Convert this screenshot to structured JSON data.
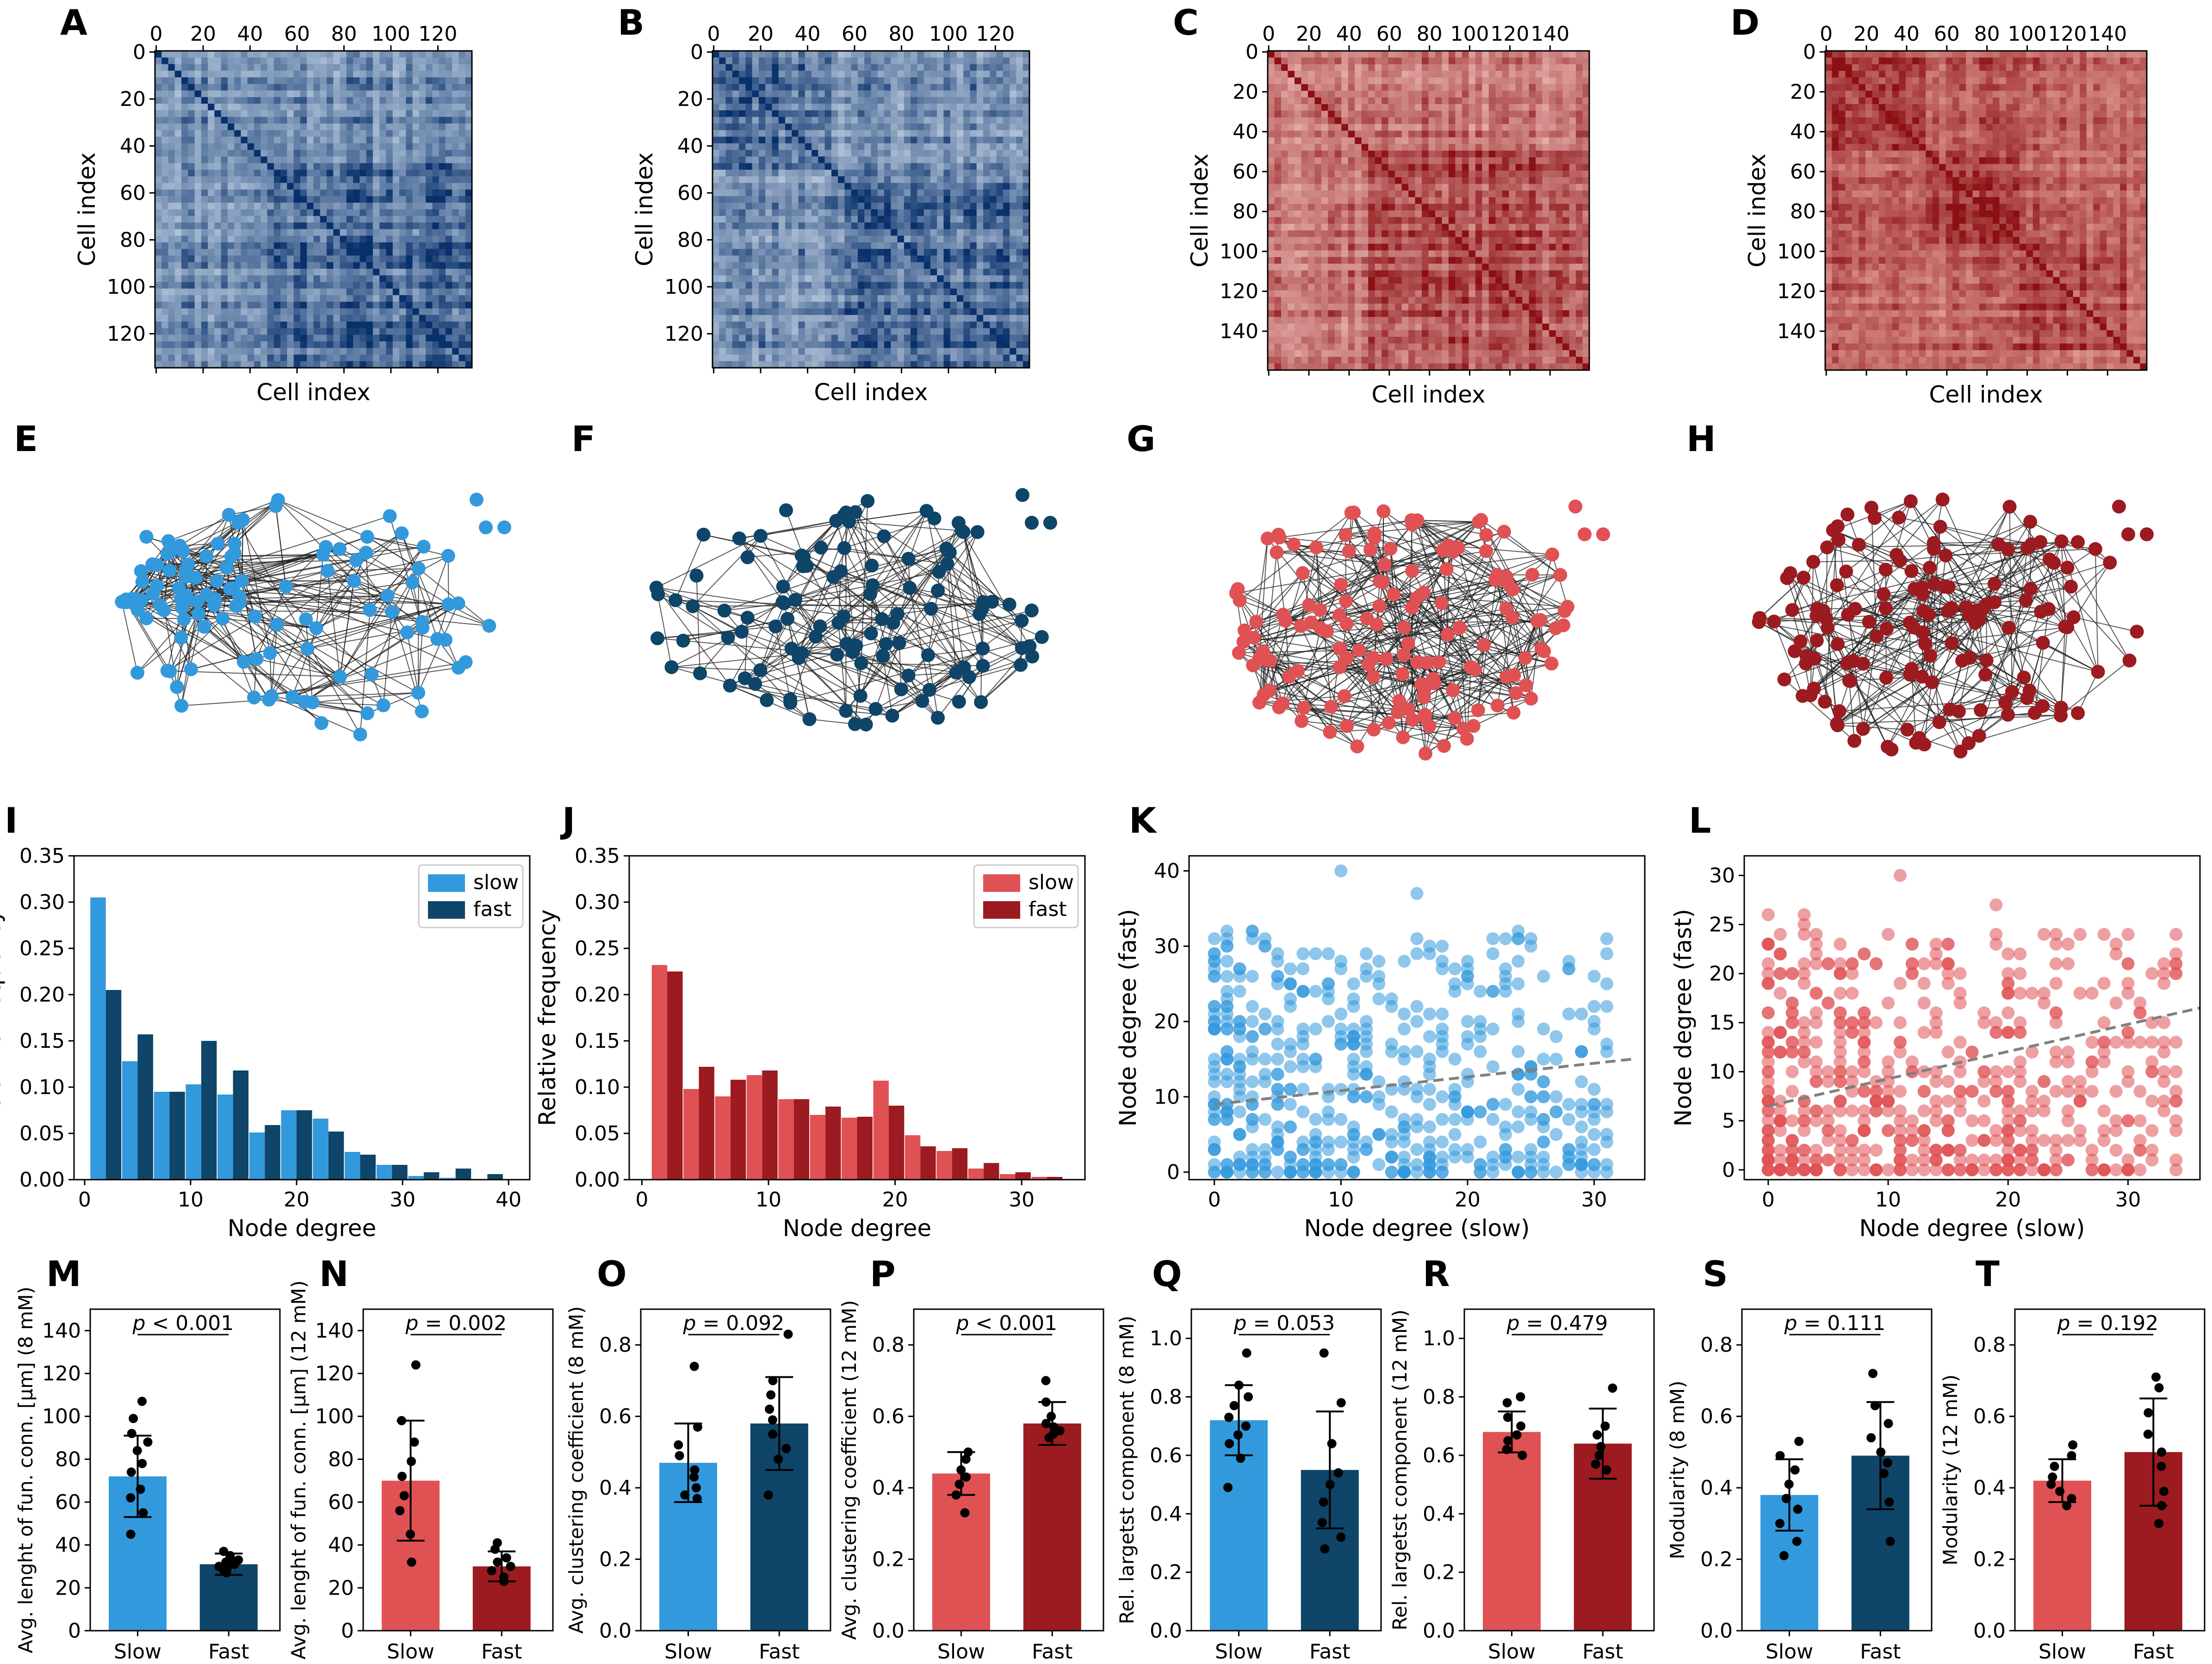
{
  "colors": {
    "slow_8mM": "#3399dd",
    "fast_8mM": "#0e4568",
    "slow_12mM": "#e05154",
    "fast_12mM": "#9b1b20",
    "trend_line": "#808080"
  },
  "chart_data": [
    {
      "id": "A",
      "type": "heatmap",
      "title": "",
      "xlabel": "Cell index",
      "ylabel": "Cell index",
      "n_cells": 135,
      "x_ticks": [
        "0",
        "20",
        "40",
        "60",
        "80",
        "100",
        "120"
      ],
      "y_ticks": [
        "0",
        "20",
        "40",
        "60",
        "80",
        "100",
        "120"
      ],
      "cmap": "Blues"
    },
    {
      "id": "B",
      "type": "heatmap",
      "title": "",
      "xlabel": "Cell index",
      "ylabel": "Cell index",
      "n_cells": 135,
      "x_ticks": [
        "0",
        "20",
        "40",
        "60",
        "80",
        "100",
        "120"
      ],
      "y_ticks": [
        "0",
        "20",
        "40",
        "60",
        "80",
        "100",
        "120"
      ],
      "cmap": "Blues"
    },
    {
      "id": "C",
      "type": "heatmap",
      "title": "",
      "xlabel": "Cell index",
      "ylabel": "Cell index",
      "n_cells": 160,
      "x_ticks": [
        "0",
        "20",
        "40",
        "60",
        "80",
        "100",
        "120",
        "140"
      ],
      "y_ticks": [
        "0",
        "20",
        "40",
        "60",
        "80",
        "100",
        "120",
        "140"
      ],
      "cmap": "Reds"
    },
    {
      "id": "D",
      "type": "heatmap",
      "title": "",
      "xlabel": "Cell index",
      "ylabel": "Cell index",
      "n_cells": 160,
      "x_ticks": [
        "0",
        "20",
        "40",
        "60",
        "80",
        "100",
        "120",
        "140"
      ],
      "y_ticks": [
        "0",
        "20",
        "40",
        "60",
        "80",
        "100",
        "120",
        "140"
      ],
      "cmap": "Reds"
    },
    {
      "id": "E",
      "type": "network",
      "condition": "slow 8 mM",
      "nodes": 135
    },
    {
      "id": "F",
      "type": "network",
      "condition": "fast 8 mM",
      "nodes": 135
    },
    {
      "id": "G",
      "type": "network",
      "condition": "slow 12 mM",
      "nodes": 160
    },
    {
      "id": "H",
      "type": "network",
      "condition": "fast 12 mM",
      "nodes": 160
    },
    {
      "id": "I",
      "type": "bar",
      "xlabel": "Node degree",
      "ylabel": "Relative frequency",
      "ylim": [
        0,
        0.35
      ],
      "xlim": [
        -1,
        42
      ],
      "x_ticks": [
        "0",
        "10",
        "20",
        "30",
        "40"
      ],
      "y_ticks": [
        "0.00",
        "0.05",
        "0.10",
        "0.15",
        "0.20",
        "0.25",
        "0.30",
        "0.35"
      ],
      "legend": "top-right",
      "series": [
        {
          "name": "slow",
          "x": [
            2,
            5,
            8,
            11,
            14,
            17,
            20,
            23,
            26,
            29,
            32,
            35,
            38
          ],
          "values": [
            0.305,
            0.128,
            0.095,
            0.103,
            0.092,
            0.051,
            0.075,
            0.066,
            0.03,
            0.016,
            0.004,
            0.002,
            0.0
          ]
        },
        {
          "name": "fast",
          "x": [
            2,
            5,
            8,
            11,
            14,
            17,
            20,
            23,
            26,
            29,
            32,
            35,
            38
          ],
          "values": [
            0.205,
            0.157,
            0.095,
            0.15,
            0.118,
            0.059,
            0.075,
            0.052,
            0.027,
            0.016,
            0.008,
            0.012,
            0.006
          ]
        }
      ]
    },
    {
      "id": "J",
      "type": "bar",
      "xlabel": "Node degree",
      "ylabel": "Relative frequency",
      "ylim": [
        0,
        0.35
      ],
      "xlim": [
        -1,
        35
      ],
      "x_ticks": [
        "0",
        "10",
        "20",
        "30"
      ],
      "y_ticks": [
        "0.00",
        "0.05",
        "0.10",
        "0.15",
        "0.20",
        "0.25",
        "0.30",
        "0.35"
      ],
      "legend": "top-right",
      "series": [
        {
          "name": "slow",
          "x": [
            2,
            4.5,
            7,
            9.5,
            12,
            14.5,
            17,
            19.5,
            22,
            24.5,
            27,
            29.5,
            32
          ],
          "values": [
            0.232,
            0.098,
            0.09,
            0.113,
            0.087,
            0.07,
            0.067,
            0.107,
            0.048,
            0.031,
            0.012,
            0.006,
            0.003
          ]
        },
        {
          "name": "fast",
          "x": [
            2,
            4.5,
            7,
            9.5,
            12,
            14.5,
            17,
            19.5,
            22,
            24.5,
            27,
            29.5,
            32
          ],
          "values": [
            0.225,
            0.122,
            0.108,
            0.118,
            0.087,
            0.079,
            0.068,
            0.08,
            0.036,
            0.034,
            0.018,
            0.008,
            0.003
          ]
        }
      ]
    },
    {
      "id": "K",
      "type": "scatter",
      "xlabel": "Node degree (slow)",
      "ylabel": "Node degree (fast)",
      "xlim": [
        -2,
        34
      ],
      "ylim": [
        -1,
        42
      ],
      "x_ticks": [
        "0",
        "10",
        "20",
        "30"
      ],
      "y_ticks": [
        "0",
        "10",
        "20",
        "30",
        "40"
      ],
      "n_points": 560,
      "x_max": 32,
      "y_max": 41,
      "trend": {
        "x0": 0,
        "y0": 9,
        "x1": 33,
        "y1": 15
      }
    },
    {
      "id": "L",
      "type": "scatter",
      "xlabel": "Node degree (slow)",
      "ylabel": "Node degree (fast)",
      "xlim": [
        -2,
        36
      ],
      "ylim": [
        -1,
        32
      ],
      "x_ticks": [
        "0",
        "10",
        "20",
        "30"
      ],
      "y_ticks": [
        "0",
        "5",
        "10",
        "15",
        "20",
        "25",
        "30"
      ],
      "n_points": 620,
      "x_max": 35,
      "y_max": 31,
      "trend": {
        "x0": 0,
        "y0": 6.5,
        "x1": 36,
        "y1": 16.5
      }
    },
    {
      "id": "M",
      "type": "bar",
      "ylabel": "Avg. lenght of fun. conn. [μm] (8 mM)",
      "ylim": [
        0,
        150
      ],
      "y_ticks": [
        "0",
        "20",
        "40",
        "60",
        "80",
        "100",
        "120",
        "140"
      ],
      "categories": [
        "Slow",
        "Fast"
      ],
      "values": [
        72,
        31
      ],
      "errors": [
        19,
        5
      ],
      "p_value": "< 0.001",
      "points": [
        [
          107,
          99,
          92,
          88,
          84,
          78,
          74,
          66,
          62,
          55,
          45
        ],
        [
          37,
          35,
          34,
          33,
          32,
          31,
          30,
          29,
          28,
          27
        ]
      ]
    },
    {
      "id": "N",
      "type": "bar",
      "ylabel": "Avg. lenght of fun. conn. [μm] (12 mM)",
      "ylim": [
        0,
        150
      ],
      "y_ticks": [
        "0",
        "20",
        "40",
        "60",
        "80",
        "100",
        "120",
        "140"
      ],
      "categories": [
        "Slow",
        "Fast"
      ],
      "values": [
        70,
        30
      ],
      "errors": [
        28,
        7
      ],
      "p_value": "= 0.002",
      "points": [
        [
          124,
          98,
          88,
          79,
          72,
          63,
          56,
          45,
          32
        ],
        [
          41,
          38,
          34,
          32,
          30,
          28,
          25,
          23
        ]
      ]
    },
    {
      "id": "O",
      "type": "bar",
      "ylabel": "Avg. clustering coefficient (8 mM)",
      "ylim": [
        0,
        0.9
      ],
      "y_ticks": [
        "0.0",
        "0.2",
        "0.4",
        "0.6",
        "0.8"
      ],
      "categories": [
        "Slow",
        "Fast"
      ],
      "values": [
        0.47,
        0.58
      ],
      "errors": [
        0.11,
        0.13
      ],
      "p_value": "= 0.092",
      "points": [
        [
          0.74,
          0.57,
          0.52,
          0.49,
          0.45,
          0.43,
          0.4,
          0.38,
          0.37
        ],
        [
          0.83,
          0.7,
          0.66,
          0.62,
          0.59,
          0.55,
          0.51,
          0.48,
          0.38
        ]
      ]
    },
    {
      "id": "P",
      "type": "bar",
      "ylabel": "Avg. clustering coefficient (12 mM)",
      "ylim": [
        0,
        0.9
      ],
      "y_ticks": [
        "0.0",
        "0.2",
        "0.4",
        "0.6",
        "0.8"
      ],
      "categories": [
        "Slow",
        "Fast"
      ],
      "values": [
        0.44,
        0.58
      ],
      "errors": [
        0.06,
        0.06
      ],
      "p_value": "< 0.001",
      "points": [
        [
          0.5,
          0.48,
          0.45,
          0.43,
          0.41,
          0.38,
          0.33
        ],
        [
          0.7,
          0.64,
          0.6,
          0.58,
          0.57,
          0.56,
          0.55,
          0.54
        ]
      ]
    },
    {
      "id": "Q",
      "type": "bar",
      "ylabel": "Rel. largetst component (8 mM)",
      "ylim": [
        0,
        1.1
      ],
      "y_ticks": [
        "0.0",
        "0.2",
        "0.4",
        "0.6",
        "0.8",
        "1.0"
      ],
      "categories": [
        "Slow",
        "Fast"
      ],
      "values": [
        0.72,
        0.55
      ],
      "errors": [
        0.12,
        0.2
      ],
      "p_value": "= 0.053",
      "points": [
        [
          0.95,
          0.84,
          0.8,
          0.77,
          0.73,
          0.7,
          0.67,
          0.64,
          0.59,
          0.49
        ],
        [
          0.95,
          0.78,
          0.64,
          0.54,
          0.5,
          0.44,
          0.37,
          0.32,
          0.28
        ]
      ]
    },
    {
      "id": "R",
      "type": "bar",
      "ylabel": "Rel. largetst component (12 mM)",
      "ylim": [
        0,
        1.1
      ],
      "y_ticks": [
        "0.0",
        "0.2",
        "0.4",
        "0.6",
        "0.8",
        "1.0"
      ],
      "categories": [
        "Slow",
        "Fast"
      ],
      "values": [
        0.68,
        0.64
      ],
      "errors": [
        0.07,
        0.12
      ],
      "p_value": "= 0.479",
      "points": [
        [
          0.8,
          0.78,
          0.73,
          0.7,
          0.67,
          0.65,
          0.62,
          0.6
        ],
        [
          0.83,
          0.7,
          0.67,
          0.63,
          0.6,
          0.57,
          0.55
        ]
      ]
    },
    {
      "id": "S",
      "type": "bar",
      "ylabel": "Modularity (8 mM)",
      "ylim": [
        0,
        0.9
      ],
      "y_ticks": [
        "0.0",
        "0.2",
        "0.4",
        "0.6",
        "0.8"
      ],
      "categories": [
        "Slow",
        "Fast"
      ],
      "values": [
        0.38,
        0.49
      ],
      "errors": [
        0.1,
        0.15
      ],
      "p_value": "= 0.111",
      "points": [
        [
          0.53,
          0.49,
          0.45,
          0.41,
          0.37,
          0.34,
          0.3,
          0.25,
          0.21
        ],
        [
          0.72,
          0.63,
          0.58,
          0.54,
          0.5,
          0.47,
          0.44,
          0.36,
          0.25
        ]
      ]
    },
    {
      "id": "T",
      "type": "bar",
      "ylabel": "Modularity (12 mM)",
      "ylim": [
        0,
        0.9
      ],
      "y_ticks": [
        "0.0",
        "0.2",
        "0.4",
        "0.6",
        "0.8"
      ],
      "categories": [
        "Slow",
        "Fast"
      ],
      "values": [
        0.42,
        0.5
      ],
      "errors": [
        0.06,
        0.15
      ],
      "p_value": "= 0.192",
      "points": [
        [
          0.52,
          0.49,
          0.46,
          0.43,
          0.41,
          0.39,
          0.37,
          0.35
        ],
        [
          0.71,
          0.68,
          0.61,
          0.55,
          0.5,
          0.46,
          0.39,
          0.35,
          0.3
        ]
      ]
    }
  ]
}
